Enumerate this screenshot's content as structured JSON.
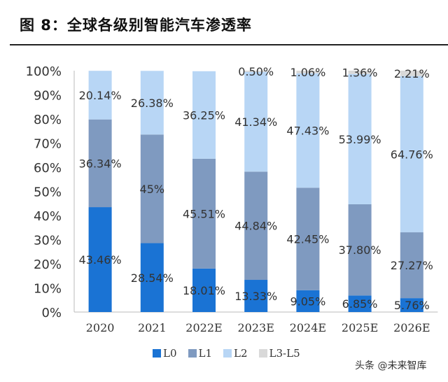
{
  "title": "图 8：全球各级别智能汽车渗透率",
  "watermark": "头条 @未来智库",
  "chart_data": {
    "type": "bar",
    "stacked": true,
    "title": "图 8：全球各级别智能汽车渗透率",
    "categories": [
      "2020",
      "2021",
      "2022E",
      "2023E",
      "2024E",
      "2025E",
      "2026E"
    ],
    "ylim": [
      0,
      100
    ],
    "yticks": [
      "0%",
      "10%",
      "20%",
      "30%",
      "40%",
      "50%",
      "60%",
      "70%",
      "80%",
      "90%",
      "100%"
    ],
    "grid": false,
    "legend": "bottom",
    "series": [
      {
        "name": "L0",
        "color": "#1a73d4",
        "values": [
          43.46,
          28.54,
          18.01,
          13.33,
          9.05,
          6.85,
          5.76
        ],
        "labels": [
          "43.46%",
          "28.54%",
          "18.01%",
          "13.33%",
          "9.05%",
          "6.85%",
          "5.76%"
        ]
      },
      {
        "name": "L1",
        "color": "#7f9ac0",
        "values": [
          36.34,
          45,
          45.51,
          44.84,
          42.45,
          37.8,
          27.27
        ],
        "labels": [
          "36.34%",
          "45%",
          "45.51%",
          "44.84%",
          "42.45%",
          "37.80%",
          "27.27%"
        ]
      },
      {
        "name": "L2",
        "color": "#b8d6f5",
        "values": [
          20.14,
          26.38,
          36.25,
          41.34,
          47.43,
          53.99,
          64.76
        ],
        "labels": [
          "20.14%",
          "26.38%",
          "36.25%",
          "41.34%",
          "47.43%",
          "53.99%",
          "64.76%"
        ]
      },
      {
        "name": "L3-L5",
        "color": "#d9d9d9",
        "values": [
          0,
          0,
          0,
          0.5,
          1.06,
          1.36,
          2.21
        ],
        "labels": [
          "",
          "",
          "",
          "0.50%",
          "1.06%",
          "1.36%",
          "2.21%"
        ]
      }
    ]
  }
}
